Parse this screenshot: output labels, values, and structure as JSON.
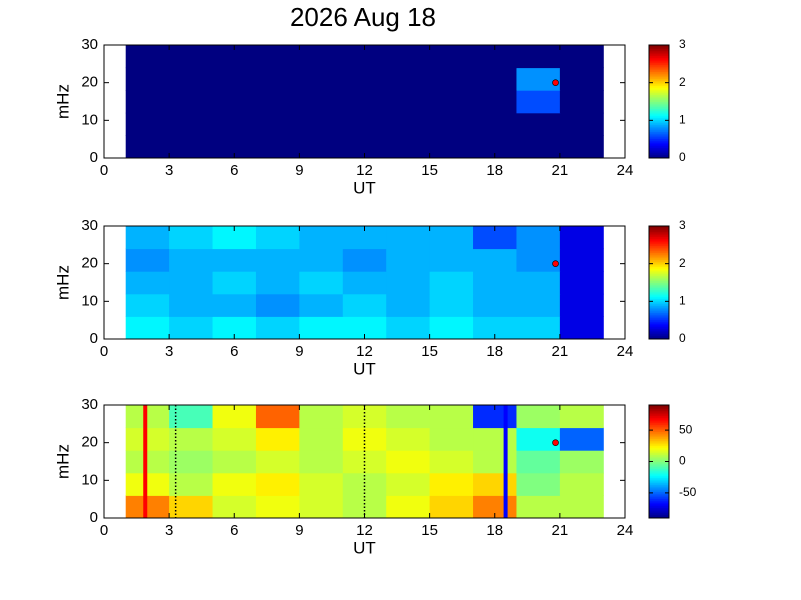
{
  "chart_data": [
    {
      "type": "heatmap",
      "title": "2026 Aug 18",
      "xlabel": "UT",
      "ylabel": "mHz",
      "xlim": [
        0,
        24
      ],
      "xticks": [
        0,
        3,
        6,
        9,
        12,
        15,
        18,
        21,
        24
      ],
      "ylim": [
        0,
        30
      ],
      "yticks": [
        0,
        10,
        20,
        30
      ],
      "x": [
        2,
        4,
        6,
        8,
        10,
        12,
        14,
        16,
        18,
        20,
        22
      ],
      "y": [
        3,
        9,
        15,
        21,
        27
      ],
      "values": [
        [
          0,
          0,
          0,
          0,
          0,
          0,
          0,
          0,
          0,
          0,
          0
        ],
        [
          0,
          0,
          0,
          0,
          0,
          0,
          0,
          0,
          0,
          0,
          0
        ],
        [
          0,
          0,
          0,
          0,
          0,
          0,
          0,
          0,
          0,
          0.6,
          0
        ],
        [
          0,
          0,
          0,
          0,
          0,
          0,
          0,
          0,
          0,
          0.8,
          0
        ],
        [
          0,
          0,
          0,
          0,
          0,
          0,
          0,
          0,
          0,
          0,
          0
        ]
      ],
      "colormap": "jet",
      "clim": [
        0,
        3
      ],
      "cticks": [
        0,
        1,
        2,
        3
      ],
      "marker": {
        "x": 20.8,
        "y": 20,
        "color": "#ff0000"
      }
    },
    {
      "type": "heatmap",
      "xlabel": "UT",
      "ylabel": "mHz",
      "xlim": [
        0,
        24
      ],
      "xticks": [
        0,
        3,
        6,
        9,
        12,
        15,
        18,
        21,
        24
      ],
      "ylim": [
        0,
        30
      ],
      "yticks": [
        0,
        10,
        20,
        30
      ],
      "x": [
        2,
        4,
        6,
        8,
        10,
        12,
        14,
        16,
        18,
        20,
        22
      ],
      "y": [
        3,
        9,
        15,
        21,
        27
      ],
      "values": [
        [
          1.1,
          1.0,
          1.1,
          1.0,
          1.1,
          1.1,
          1.0,
          1.1,
          1.0,
          1.0,
          0.3
        ],
        [
          1.0,
          0.9,
          0.9,
          0.8,
          0.9,
          1.0,
          0.9,
          1.0,
          0.9,
          0.9,
          0.3
        ],
        [
          0.9,
          0.9,
          1.0,
          0.9,
          1.0,
          0.9,
          0.9,
          1.0,
          0.9,
          0.9,
          0.3
        ],
        [
          0.8,
          0.9,
          0.9,
          0.9,
          0.9,
          0.8,
          0.9,
          0.9,
          0.9,
          0.8,
          0.3
        ],
        [
          0.9,
          1.0,
          1.1,
          1.0,
          0.9,
          0.9,
          0.9,
          0.9,
          0.6,
          0.8,
          0.3
        ]
      ],
      "colormap": "jet",
      "clim": [
        0,
        3
      ],
      "cticks": [
        0,
        1,
        2,
        3
      ],
      "marker": {
        "x": 20.8,
        "y": 20,
        "color": "#ff0000"
      }
    },
    {
      "type": "heatmap",
      "xlabel": "UT",
      "ylabel": "mHz",
      "xlim": [
        0,
        24
      ],
      "xticks": [
        0,
        3,
        6,
        9,
        12,
        15,
        18,
        21,
        24
      ],
      "ylim": [
        0,
        30
      ],
      "yticks": [
        0,
        10,
        20,
        30
      ],
      "x": [
        2,
        4,
        6,
        8,
        10,
        12,
        14,
        16,
        18,
        20,
        22
      ],
      "y": [
        3,
        9,
        15,
        21,
        27
      ],
      "values": [
        [
          45,
          30,
          15,
          20,
          15,
          10,
          20,
          30,
          45,
          10,
          10
        ],
        [
          20,
          10,
          20,
          25,
          15,
          10,
          15,
          25,
          30,
          0,
          10
        ],
        [
          10,
          5,
          10,
          15,
          10,
          15,
          20,
          15,
          10,
          -5,
          5
        ],
        [
          15,
          10,
          15,
          25,
          10,
          20,
          15,
          10,
          10,
          -20,
          -50
        ],
        [
          10,
          -10,
          20,
          50,
          10,
          15,
          10,
          10,
          -60,
          5,
          10
        ]
      ],
      "colormap": "jet",
      "clim": [
        -90,
        90
      ],
      "cticks": [
        -50,
        0,
        50
      ],
      "marker": {
        "x": 20.8,
        "y": 20,
        "color": "#ff0000"
      },
      "vlines": [
        {
          "x": 1.9,
          "color": "#ff0000",
          "style": "solid"
        },
        {
          "x": 3.3,
          "color": "#000000",
          "style": "dotted"
        },
        {
          "x": 12,
          "color": "#000000",
          "style": "dotted"
        },
        {
          "x": 18.5,
          "color": "#0000ff",
          "style": "solid"
        }
      ]
    }
  ]
}
